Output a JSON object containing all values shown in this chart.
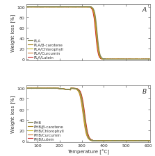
{
  "panel_A_label": "A",
  "panel_B_label": "B",
  "xlabel": "Temperature [°C]",
  "ylabel": "Weight loss [%]",
  "xlim": [
    50,
    610
  ],
  "ylim": [
    -2,
    105
  ],
  "yticks": [
    0,
    20,
    40,
    60,
    80,
    100
  ],
  "xticks": [
    100,
    200,
    300,
    400,
    500,
    600
  ],
  "legend_A": [
    "PLA",
    "PLA/β-carotene",
    "PLA/Chlorophyll",
    "PLA/Curcumin",
    "PLA/Lutein"
  ],
  "legend_B": [
    "PHB",
    "PHB/β-carotene",
    "PHB/Chlorophyll",
    "PHB/Curcumin",
    "PHB/Lutein"
  ],
  "colors_A": [
    "#888855",
    "#aa8822",
    "#ccbb22",
    "#cc7733",
    "#cc2222"
  ],
  "colors_B": [
    "#888855",
    "#aa8822",
    "#ccbb22",
    "#cc7733",
    "#cc2222"
  ],
  "linewidth": 0.8,
  "fontsize_label": 5.0,
  "fontsize_tick": 4.5,
  "fontsize_legend": 4.0,
  "fontsize_panel": 6.5,
  "background_color": "#ffffff",
  "pla_mid": [
    370,
    368,
    367,
    365,
    363
  ],
  "pla_slope": 0.18,
  "phb_mid": [
    310,
    312,
    308,
    306,
    314
  ],
  "phb_slope": 0.13,
  "phb_start_drop": 200
}
